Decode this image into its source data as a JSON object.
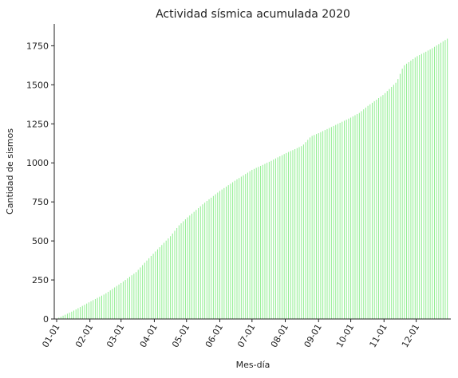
{
  "chart_data": {
    "type": "bar",
    "title": "Actividad sísmica acumulada 2020",
    "xlabel": "Mes-día",
    "ylabel": "Cantidad de sismos",
    "ylim": [
      0,
      1890
    ],
    "yticks": [
      0,
      250,
      500,
      750,
      1000,
      1250,
      1500,
      1750
    ],
    "x_tick_labels": [
      "01-01",
      "02-01",
      "03-01",
      "04-01",
      "05-01",
      "06-01",
      "07-01",
      "08-01",
      "09-01",
      "10-01",
      "11-01",
      "12-01"
    ],
    "x_tick_days": [
      1,
      32,
      61,
      92,
      122,
      153,
      183,
      214,
      245,
      275,
      306,
      336
    ],
    "days_in_year": 366,
    "bar_every_n_days": 2,
    "cumulative_at_day": [
      [
        1,
        2
      ],
      [
        16,
        50
      ],
      [
        32,
        110
      ],
      [
        46,
        160
      ],
      [
        61,
        230
      ],
      [
        75,
        300
      ],
      [
        83,
        360
      ],
      [
        92,
        425
      ],
      [
        107,
        530
      ],
      [
        115,
        600
      ],
      [
        122,
        645
      ],
      [
        138,
        740
      ],
      [
        153,
        820
      ],
      [
        168,
        890
      ],
      [
        183,
        955
      ],
      [
        200,
        1010
      ],
      [
        214,
        1060
      ],
      [
        230,
        1110
      ],
      [
        238,
        1170
      ],
      [
        245,
        1190
      ],
      [
        260,
        1240
      ],
      [
        275,
        1290
      ],
      [
        283,
        1320
      ],
      [
        290,
        1360
      ],
      [
        306,
        1440
      ],
      [
        318,
        1520
      ],
      [
        324,
        1620
      ],
      [
        336,
        1680
      ],
      [
        350,
        1730
      ],
      [
        366,
        1800
      ]
    ],
    "grid": false,
    "legend": "none",
    "bar_color": "#90ee90"
  }
}
